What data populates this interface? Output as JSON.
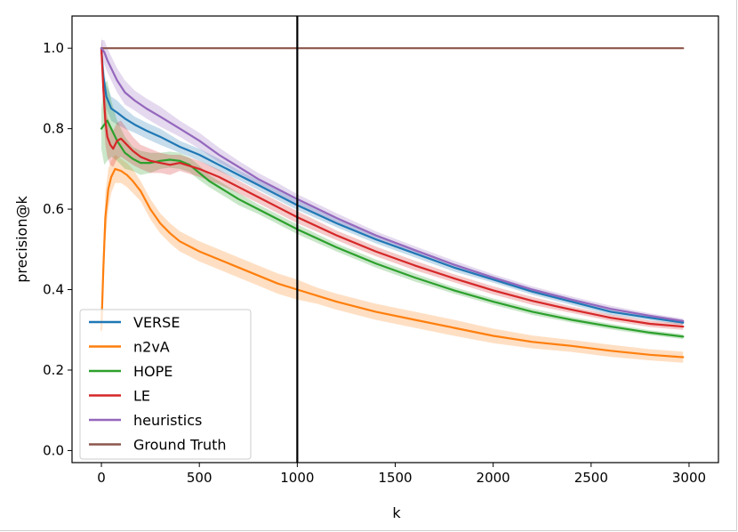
{
  "chart_data": {
    "type": "line",
    "title": "",
    "xlabel": "k",
    "ylabel": "precision@k",
    "xlim": [
      -150,
      3150
    ],
    "ylim": [
      -0.03,
      1.08
    ],
    "xticks": [
      0,
      500,
      1000,
      1500,
      2000,
      2500,
      3000
    ],
    "xtick_labels": [
      "0",
      "500",
      "1000",
      "1500",
      "2000",
      "2500",
      "3000"
    ],
    "yticks": [
      0.0,
      0.2,
      0.4,
      0.6,
      0.8,
      1.0
    ],
    "ytick_labels": [
      "0.0",
      "0.2",
      "0.4",
      "0.6",
      "0.8",
      "1.0"
    ],
    "vline_x": 1000,
    "legend_position": "lower-left",
    "series": [
      {
        "name": "VERSE",
        "color": "#1f77b4",
        "x": [
          0,
          10,
          25,
          50,
          80,
          120,
          170,
          230,
          300,
          400,
          500,
          600,
          700,
          800,
          900,
          1000,
          1200,
          1400,
          1600,
          1800,
          2000,
          2200,
          2400,
          2600,
          2800,
          2970
        ],
        "y": [
          1.0,
          0.93,
          0.88,
          0.85,
          0.84,
          0.825,
          0.81,
          0.795,
          0.78,
          0.755,
          0.735,
          0.71,
          0.685,
          0.66,
          0.635,
          0.61,
          0.565,
          0.525,
          0.49,
          0.455,
          0.425,
          0.395,
          0.37,
          0.345,
          0.33,
          0.318
        ],
        "band": [
          0.025,
          0.03,
          0.03,
          0.03,
          0.03,
          0.025,
          0.02,
          0.02,
          0.02,
          0.015,
          0.015,
          0.015,
          0.012,
          0.012,
          0.012,
          0.012,
          0.01,
          0.01,
          0.01,
          0.01,
          0.008,
          0.008,
          0.008,
          0.008,
          0.006,
          0.006
        ]
      },
      {
        "name": "n2vA",
        "color": "#ff7f0e",
        "x": [
          0,
          10,
          20,
          35,
          50,
          70,
          100,
          130,
          160,
          200,
          250,
          300,
          350,
          400,
          500,
          600,
          700,
          800,
          900,
          1000,
          1100,
          1200,
          1400,
          1600,
          1800,
          2000,
          2200,
          2400,
          2600,
          2800,
          2970
        ],
        "y": [
          0.3,
          0.45,
          0.58,
          0.65,
          0.68,
          0.7,
          0.695,
          0.685,
          0.67,
          0.645,
          0.6,
          0.565,
          0.54,
          0.52,
          0.495,
          0.475,
          0.455,
          0.435,
          0.415,
          0.4,
          0.385,
          0.37,
          0.345,
          0.325,
          0.305,
          0.285,
          0.27,
          0.26,
          0.248,
          0.238,
          0.232
        ],
        "band": [
          0.05,
          0.06,
          0.06,
          0.05,
          0.04,
          0.035,
          0.03,
          0.03,
          0.03,
          0.025,
          0.025,
          0.025,
          0.025,
          0.025,
          0.025,
          0.025,
          0.025,
          0.025,
          0.025,
          0.025,
          0.02,
          0.02,
          0.02,
          0.02,
          0.02,
          0.018,
          0.016,
          0.015,
          0.015,
          0.014,
          0.014
        ]
      },
      {
        "name": "HOPE",
        "color": "#2ca02c",
        "x": [
          0,
          15,
          30,
          50,
          80,
          120,
          160,
          200,
          250,
          300,
          350,
          400,
          450,
          500,
          550,
          600,
          700,
          800,
          900,
          1000,
          1200,
          1400,
          1600,
          1800,
          2000,
          2200,
          2400,
          2600,
          2800,
          2970
        ],
        "y": [
          0.8,
          0.81,
          0.82,
          0.8,
          0.77,
          0.74,
          0.725,
          0.715,
          0.715,
          0.72,
          0.723,
          0.72,
          0.71,
          0.69,
          0.67,
          0.655,
          0.625,
          0.6,
          0.575,
          0.55,
          0.505,
          0.465,
          0.43,
          0.398,
          0.37,
          0.345,
          0.325,
          0.308,
          0.293,
          0.283
        ],
        "band": [
          0.05,
          0.1,
          0.1,
          0.07,
          0.05,
          0.04,
          0.03,
          0.03,
          0.025,
          0.02,
          0.02,
          0.02,
          0.018,
          0.018,
          0.015,
          0.015,
          0.015,
          0.012,
          0.012,
          0.012,
          0.01,
          0.01,
          0.01,
          0.008,
          0.008,
          0.008,
          0.007,
          0.007,
          0.006,
          0.006
        ]
      },
      {
        "name": "LE",
        "color": "#d62728",
        "x": [
          0,
          10,
          20,
          30,
          45,
          60,
          80,
          100,
          130,
          160,
          200,
          250,
          300,
          350,
          400,
          500,
          600,
          700,
          800,
          900,
          1000,
          1200,
          1400,
          1600,
          1800,
          2000,
          2200,
          2400,
          2600,
          2800,
          2970
        ],
        "y": [
          1.0,
          0.9,
          0.82,
          0.78,
          0.76,
          0.75,
          0.77,
          0.775,
          0.76,
          0.745,
          0.73,
          0.72,
          0.715,
          0.71,
          0.715,
          0.7,
          0.68,
          0.655,
          0.63,
          0.605,
          0.58,
          0.535,
          0.495,
          0.46,
          0.428,
          0.398,
          0.372,
          0.35,
          0.33,
          0.315,
          0.308
        ],
        "band": [
          0.03,
          0.05,
          0.06,
          0.05,
          0.05,
          0.045,
          0.045,
          0.045,
          0.04,
          0.035,
          0.03,
          0.03,
          0.025,
          0.025,
          0.02,
          0.02,
          0.018,
          0.016,
          0.015,
          0.015,
          0.015,
          0.012,
          0.012,
          0.012,
          0.01,
          0.01,
          0.01,
          0.008,
          0.008,
          0.008,
          0.008
        ]
      },
      {
        "name": "heuristics",
        "color": "#9467bd",
        "x": [
          0,
          15,
          30,
          50,
          80,
          120,
          170,
          230,
          300,
          400,
          500,
          600,
          700,
          800,
          900,
          1000,
          1200,
          1400,
          1600,
          1800,
          2000,
          2200,
          2400,
          2600,
          2800,
          2970
        ],
        "y": [
          1.0,
          0.99,
          0.97,
          0.95,
          0.92,
          0.89,
          0.87,
          0.85,
          0.83,
          0.8,
          0.77,
          0.735,
          0.705,
          0.675,
          0.65,
          0.625,
          0.578,
          0.535,
          0.498,
          0.462,
          0.43,
          0.4,
          0.375,
          0.352,
          0.335,
          0.322
        ],
        "band": [
          0.02,
          0.03,
          0.03,
          0.03,
          0.03,
          0.03,
          0.025,
          0.025,
          0.025,
          0.02,
          0.02,
          0.018,
          0.015,
          0.015,
          0.015,
          0.012,
          0.012,
          0.01,
          0.01,
          0.01,
          0.008,
          0.008,
          0.008,
          0.008,
          0.006,
          0.006
        ]
      },
      {
        "name": "Ground Truth",
        "color": "#8c564b",
        "x": [
          0,
          2970
        ],
        "y": [
          1.0,
          1.0
        ]
      }
    ]
  }
}
